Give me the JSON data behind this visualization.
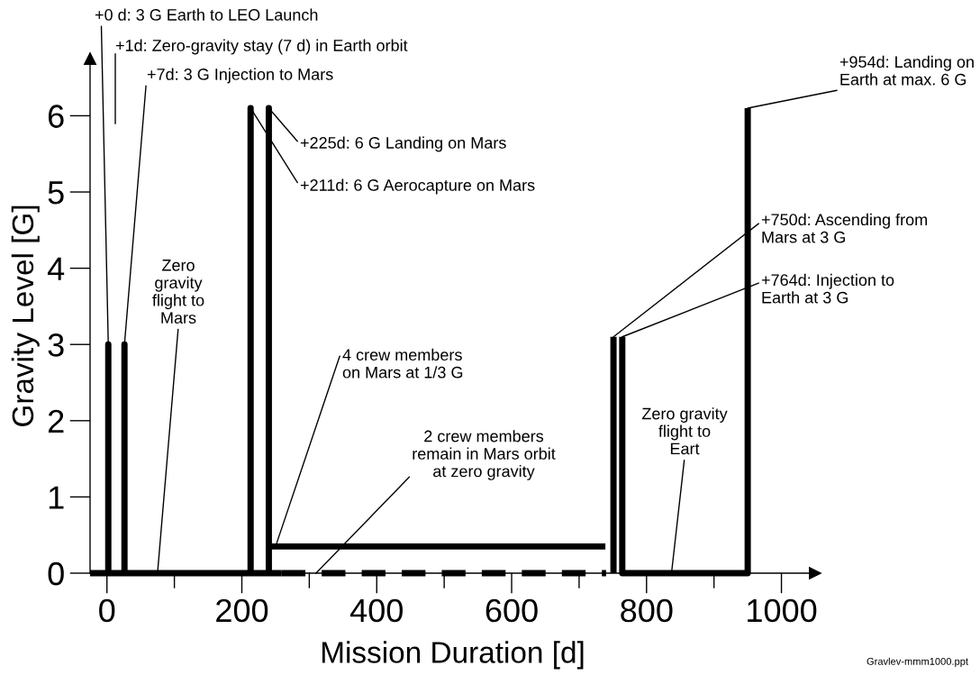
{
  "chart_data": {
    "type": "line",
    "xlabel": "Mission Duration [d]",
    "ylabel": "Gravity Level [G]",
    "xlim": [
      -25,
      1050
    ],
    "ylim": [
      0,
      6.75
    ],
    "xticks": [
      0,
      {
        "value": 100,
        "label": null
      },
      200,
      {
        "value": 300,
        "label": null
      },
      400,
      {
        "value": 500,
        "label": null
      },
      600,
      {
        "value": 700,
        "label": null
      },
      800,
      {
        "value": 900,
        "label": null
      },
      1000
    ],
    "yticks": [
      0,
      1,
      2,
      3,
      4,
      5,
      6
    ],
    "series": [
      {
        "color": "#000000",
        "x": [
          -25,
          2,
          2,
          2,
          26,
          26,
          26,
          213,
          213,
          213,
          240,
          240,
          240,
          259
        ],
        "values": [
          0,
          0,
          3,
          0,
          0,
          3,
          0,
          0,
          6.1,
          0,
          0,
          6.1,
          0,
          0
        ]
      },
      {
        "color": "#000000",
        "x": [
          240,
          739
        ],
        "values": [
          0.35,
          0.35
        ]
      },
      {
        "color": "#000000",
        "line_style": "dashed",
        "x": [
          259,
          740
        ],
        "values": [
          0,
          0
        ]
      },
      {
        "color": "#000000",
        "x": [
          751,
          751
        ],
        "values": [
          0,
          3.1
        ]
      },
      {
        "color": "#000000",
        "x": [
          764,
          764,
          950,
          950
        ],
        "values": [
          3.1,
          0,
          0,
          6.1
        ]
      }
    ],
    "annotations": [
      {
        "text": "+0 d: 3 G Earth to LEO Launch",
        "x": 2,
        "y": 3
      },
      "+1d: Zero-gravity stay (7 d) in Earth orbit",
      {
        "text": "+7d: 3 G Injection to Mars",
        "x": 26,
        "y": 3
      },
      {
        "text": "+225d: 6 G Landing on Mars",
        "x": 240,
        "y": 6.1
      },
      {
        "text": "+211d: 6 G Aerocapture on Mars",
        "x": 213,
        "y": 6.1
      },
      {
        "text": "+750d: Ascending from\nMars at 3 G",
        "x": 751,
        "y": 3.1
      },
      {
        "text": "+764d: Injection to\nEarth at 3 G",
        "x": 764,
        "y": 3.1
      },
      {
        "text": "+954d: Landing on\nEarth at max. 6 G",
        "x": 950,
        "y": 6.1
      },
      {
        "text": "Zero\ngravity\nflight to\nMars",
        "x": 75,
        "y": 0
      },
      {
        "text": "4 crew members\non Mars at 1/3 G",
        "x": 250,
        "y": 0.35
      },
      {
        "text": "2 crew members\nremain in Mars orbit\nat zero gravity",
        "x": 310,
        "y": 0
      },
      {
        "text": "Zero gravity\nflight to\nEart",
        "x": 837,
        "y": 0
      },
      "Gravlev-mmm1000.ppt"
    ]
  }
}
